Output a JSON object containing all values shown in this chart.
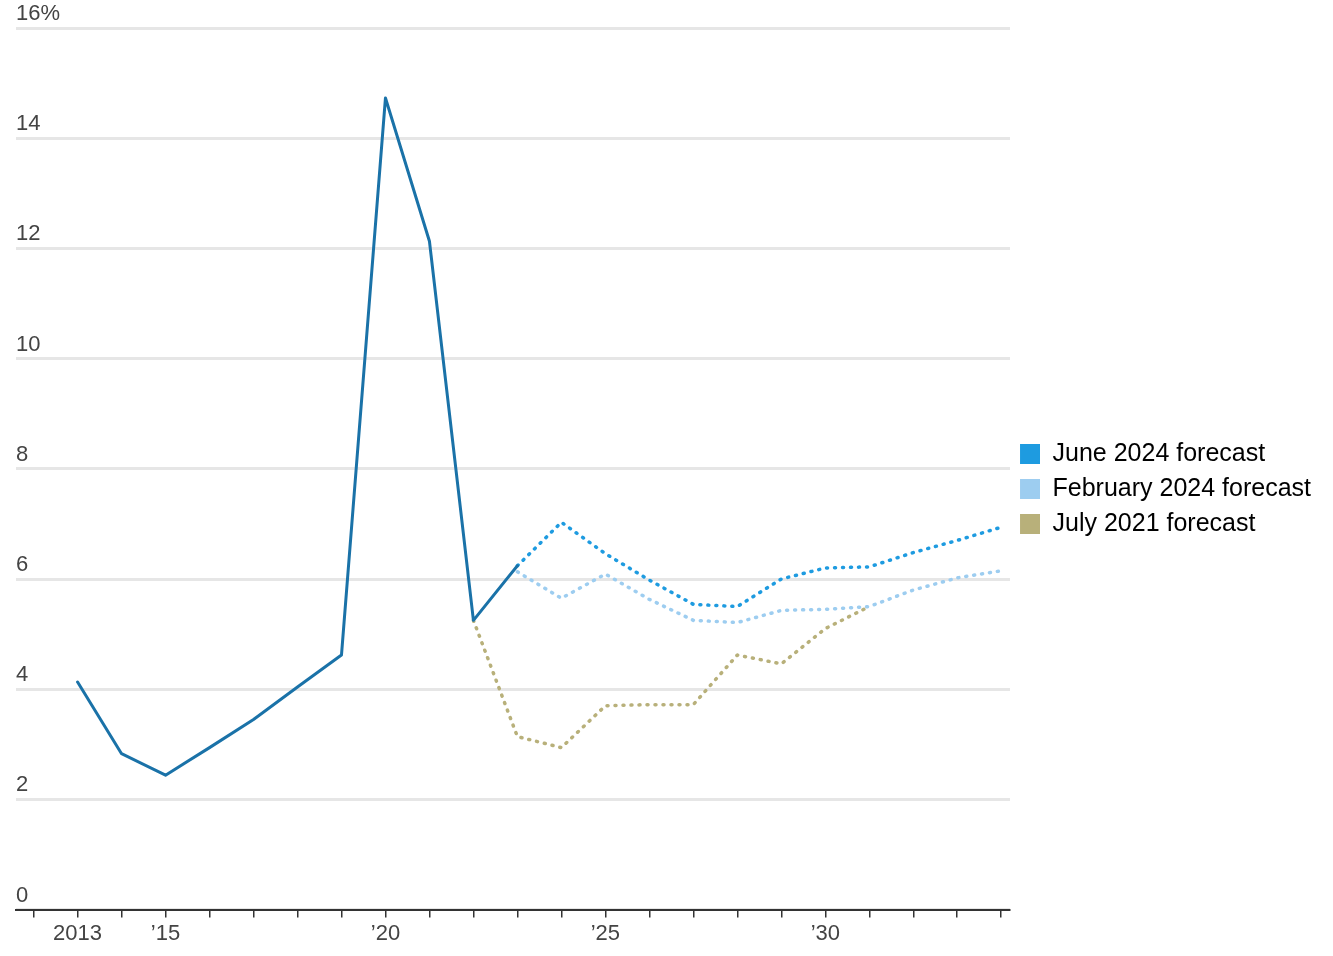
{
  "chart_data": {
    "type": "line",
    "xlim": [
      2011.6,
      2034.2
    ],
    "ylim": [
      0,
      16
    ],
    "xticks": [
      {
        "value": 2012,
        "label": null
      },
      {
        "value": 2013,
        "label": "2013"
      },
      {
        "value": 2014,
        "label": null
      },
      {
        "value": 2015,
        "label": "’15"
      },
      {
        "value": 2016,
        "label": null
      },
      {
        "value": 2017,
        "label": null
      },
      {
        "value": 2018,
        "label": null
      },
      {
        "value": 2019,
        "label": null
      },
      {
        "value": 2020,
        "label": "’20"
      },
      {
        "value": 2021,
        "label": null
      },
      {
        "value": 2022,
        "label": null
      },
      {
        "value": 2023,
        "label": null
      },
      {
        "value": 2024,
        "label": null
      },
      {
        "value": 2025,
        "label": "’25"
      },
      {
        "value": 2026,
        "label": null
      },
      {
        "value": 2027,
        "label": null
      },
      {
        "value": 2028,
        "label": null
      },
      {
        "value": 2029,
        "label": null
      },
      {
        "value": 2030,
        "label": "’30"
      },
      {
        "value": 2031,
        "label": null
      },
      {
        "value": 2032,
        "label": null
      },
      {
        "value": 2033,
        "label": null
      },
      {
        "value": 2034,
        "label": null
      }
    ],
    "yticks": [
      0,
      2,
      4,
      6,
      8,
      10,
      12,
      {
        "value": 14,
        "label": "14"
      },
      {
        "value": 16,
        "label": "16%"
      }
    ],
    "grid": "y",
    "legend": "right",
    "marker": "none",
    "series": [
      {
        "color": "#1a72a8",
        "line_style": "solid",
        "x": [
          2013,
          2014,
          2015,
          2016,
          2017,
          2018,
          2019,
          2020,
          2021,
          2022,
          2023
        ],
        "values": [
          4.13,
          2.83,
          2.44,
          2.94,
          3.45,
          4.04,
          4.62,
          14.73,
          12.13,
          5.25,
          6.24
        ]
      },
      {
        "name": "June 2024 forecast",
        "color": "#1e9be0",
        "line_style": "dotted",
        "x": [
          2023,
          2024,
          2025,
          2026,
          2027,
          2028,
          2029,
          2030,
          2031,
          2032,
          2033,
          2034
        ],
        "values": [
          6.24,
          7.03,
          6.46,
          5.98,
          5.54,
          5.5,
          6.0,
          6.2,
          6.22,
          6.48,
          6.7,
          6.94
        ]
      },
      {
        "name": "February 2024 forecast",
        "color": "#9dcdf0",
        "line_style": "dotted",
        "x": [
          2023,
          2024,
          2025,
          2026,
          2027,
          2028,
          2029,
          2030,
          2031,
          2032,
          2033,
          2034
        ],
        "values": [
          6.13,
          5.65,
          6.09,
          5.63,
          5.25,
          5.21,
          5.43,
          5.45,
          5.5,
          5.8,
          6.02,
          6.15
        ]
      },
      {
        "name": "July 2021 forecast",
        "color": "#b8b07a",
        "line_style": "dotted",
        "x": [
          2022,
          2023,
          2024,
          2025,
          2026,
          2027,
          2028,
          2029,
          2030,
          2031
        ],
        "values": [
          5.25,
          3.14,
          2.94,
          3.7,
          3.72,
          3.72,
          4.62,
          4.46,
          5.1,
          5.5
        ]
      }
    ]
  }
}
